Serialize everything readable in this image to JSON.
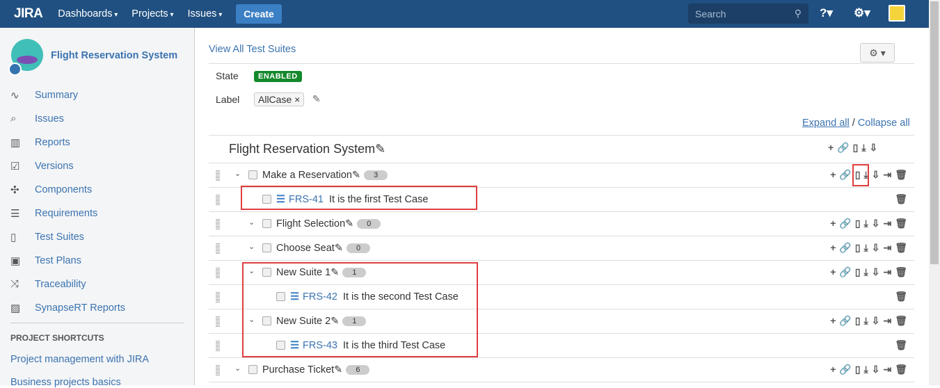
{
  "topbar": {
    "logo": "JIRA",
    "nav": [
      "Dashboards",
      "Projects",
      "Issues"
    ],
    "create": "Create",
    "search_placeholder": "Search"
  },
  "sidebar": {
    "project": "Flight Reservation System",
    "items": [
      {
        "label": "Summary",
        "icon": "activity-icon"
      },
      {
        "label": "Issues",
        "icon": "issues-icon"
      },
      {
        "label": "Reports",
        "icon": "reports-icon"
      },
      {
        "label": "Versions",
        "icon": "versions-icon"
      },
      {
        "label": "Components",
        "icon": "puzzle-icon"
      },
      {
        "label": "Requirements",
        "icon": "requirements-icon"
      },
      {
        "label": "Test Suites",
        "icon": "test-suites-icon"
      },
      {
        "label": "Test Plans",
        "icon": "test-plans-icon"
      },
      {
        "label": "Traceability",
        "icon": "shuffle-icon"
      },
      {
        "label": "SynapseRT Reports",
        "icon": "image-icon"
      }
    ],
    "shortcuts_heading": "PROJECT SHORTCUTS",
    "shortcuts": [
      "Project management with JIRA",
      "Business projects basics"
    ]
  },
  "main": {
    "view_all": "View All Test Suites",
    "state_label": "State",
    "state": "ENABLED",
    "label_label": "Label",
    "label_value": "AllCase",
    "expand_all": "Expand all",
    "collapse_all": "Collapse all",
    "root": "Flight Reservation System",
    "rows": [
      {
        "type": "suite",
        "level": 1,
        "name": "Make a Reservation",
        "count": "3"
      },
      {
        "type": "case",
        "level": 2,
        "key": "FRS-41",
        "name": "It is the first Test Case"
      },
      {
        "type": "suite",
        "level": 2,
        "name": "Flight Selection",
        "count": "0"
      },
      {
        "type": "suite",
        "level": 2,
        "name": "Choose Seat",
        "count": "0"
      },
      {
        "type": "suite",
        "level": 2,
        "name": "New Suite 1",
        "count": "1"
      },
      {
        "type": "case",
        "level": 3,
        "key": "FRS-42",
        "name": "It is the second Test Case"
      },
      {
        "type": "suite",
        "level": 2,
        "name": "New Suite 2",
        "count": "1"
      },
      {
        "type": "case",
        "level": 3,
        "key": "FRS-43",
        "name": "It is the third Test Case"
      },
      {
        "type": "suite",
        "level": 1,
        "name": "Purchase Ticket",
        "count": "6"
      }
    ]
  },
  "colors": {
    "header": "#205081",
    "accent": "#3b73af",
    "enabled": "#14892c",
    "highlight": "#e03e3e"
  }
}
